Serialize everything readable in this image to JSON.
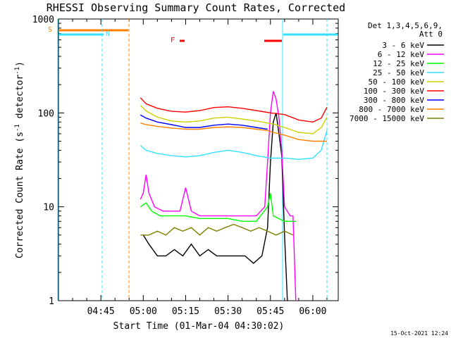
{
  "chart_data": {
    "type": "line",
    "title": "RHESSI Observing Summary Count Rates, Corrected",
    "xlabel": "Start Time (01-Mar-04 04:30:02)",
    "ylabel": "Corrected Count Rate (s",
    "ylabel_sup": "-1",
    "ylabel_tail": " detector",
    "ylabel_tail_sup": "-1",
    "ylabel_close": ")",
    "footer": "15-Oct-2021 12:24",
    "yscale": "log",
    "xlim": [
      "04:30",
      "06:09"
    ],
    "ylim": [
      1,
      1000
    ],
    "x_ticks": [
      "04:45",
      "05:00",
      "05:15",
      "05:30",
      "05:45",
      "06:00"
    ],
    "y_ticks": [
      "1",
      "10",
      "100",
      "1000"
    ],
    "legend_header": [
      "Det 1,3,4,5,6,9,",
      "Att 0"
    ],
    "legend_position": "top-right outside",
    "flags": [
      {
        "label": "S",
        "color": "#ff8000"
      },
      {
        "label": "N",
        "color": "#33e0ff"
      },
      {
        "label": "F",
        "color": "#ff0000"
      }
    ],
    "series": [
      {
        "name": "3 - 6 keV",
        "color": "#000000",
        "points": [
          [
            "05:00",
            5
          ],
          [
            "05:02",
            4
          ],
          [
            "05:05",
            3
          ],
          [
            "05:08",
            3
          ],
          [
            "05:11",
            3.5
          ],
          [
            "05:14",
            3
          ],
          [
            "05:17",
            4
          ],
          [
            "05:20",
            3
          ],
          [
            "05:23",
            3.5
          ],
          [
            "05:26",
            3
          ],
          [
            "05:30",
            3
          ],
          [
            "05:33",
            3
          ],
          [
            "05:36",
            3
          ],
          [
            "05:39",
            2.5
          ],
          [
            "05:42",
            3
          ],
          [
            "05:44",
            6
          ],
          [
            "05:45",
            30
          ],
          [
            "05:46",
            80
          ],
          [
            "05:47",
            100
          ],
          [
            "05:48",
            60
          ],
          [
            "05:49",
            35
          ],
          [
            "05:50",
            5
          ],
          [
            "05:51",
            1
          ]
        ]
      },
      {
        "name": "6 - 12 keV",
        "color": "#ff00ff",
        "points": [
          [
            "04:59",
            12
          ],
          [
            "05:00",
            14
          ],
          [
            "05:01",
            22
          ],
          [
            "05:02",
            14
          ],
          [
            "05:04",
            10
          ],
          [
            "05:07",
            9
          ],
          [
            "05:10",
            9
          ],
          [
            "05:13",
            9
          ],
          [
            "05:15",
            16
          ],
          [
            "05:17",
            9
          ],
          [
            "05:20",
            8
          ],
          [
            "05:25",
            8
          ],
          [
            "05:30",
            8
          ],
          [
            "05:35",
            8
          ],
          [
            "05:40",
            8
          ],
          [
            "05:43",
            10
          ],
          [
            "05:44",
            30
          ],
          [
            "05:45",
            100
          ],
          [
            "05:46",
            170
          ],
          [
            "05:47",
            140
          ],
          [
            "05:48",
            90
          ],
          [
            "05:49",
            40
          ],
          [
            "05:50",
            10
          ],
          [
            "05:52",
            8
          ],
          [
            "05:53",
            8
          ],
          [
            "05:54",
            1
          ]
        ]
      },
      {
        "name": "12 - 25 keV",
        "color": "#00ff00",
        "points": [
          [
            "04:59",
            10
          ],
          [
            "05:01",
            11
          ],
          [
            "05:03",
            9
          ],
          [
            "05:06",
            8
          ],
          [
            "05:10",
            8
          ],
          [
            "05:15",
            8
          ],
          [
            "05:20",
            7.5
          ],
          [
            "05:25",
            7.5
          ],
          [
            "05:30",
            7.5
          ],
          [
            "05:35",
            7
          ],
          [
            "05:40",
            7
          ],
          [
            "05:44",
            10
          ],
          [
            "05:45",
            14
          ],
          [
            "05:46",
            8
          ],
          [
            "05:50",
            7
          ],
          [
            "05:54",
            7
          ]
        ]
      },
      {
        "name": "25 - 50 keV",
        "color": "#33e0ff",
        "points": [
          [
            "04:59",
            45
          ],
          [
            "05:01",
            40
          ],
          [
            "05:05",
            37
          ],
          [
            "05:10",
            35
          ],
          [
            "05:15",
            34
          ],
          [
            "05:20",
            35
          ],
          [
            "05:25",
            38
          ],
          [
            "05:30",
            40
          ],
          [
            "05:35",
            38
          ],
          [
            "05:40",
            35
          ],
          [
            "05:45",
            33
          ],
          [
            "05:50",
            33
          ],
          [
            "05:55",
            32
          ],
          [
            "06:00",
            33
          ],
          [
            "06:03",
            40
          ],
          [
            "06:05",
            65
          ]
        ]
      },
      {
        "name": "50 - 100 keV",
        "color": "#d0d000",
        "points": [
          [
            "04:59",
            120
          ],
          [
            "05:01",
            105
          ],
          [
            "05:05",
            90
          ],
          [
            "05:10",
            82
          ],
          [
            "05:15",
            80
          ],
          [
            "05:20",
            82
          ],
          [
            "05:25",
            88
          ],
          [
            "05:30",
            90
          ],
          [
            "05:35",
            86
          ],
          [
            "05:40",
            82
          ],
          [
            "05:44",
            78
          ],
          [
            "05:46",
            76
          ],
          [
            "05:50",
            70
          ],
          [
            "05:55",
            62
          ],
          [
            "06:00",
            60
          ],
          [
            "06:03",
            70
          ],
          [
            "06:05",
            90
          ]
        ]
      },
      {
        "name": "100 - 300 keV",
        "color": "#ff0000",
        "points": [
          [
            "04:59",
            145
          ],
          [
            "05:01",
            125
          ],
          [
            "05:05",
            112
          ],
          [
            "05:10",
            104
          ],
          [
            "05:15",
            102
          ],
          [
            "05:20",
            106
          ],
          [
            "05:25",
            114
          ],
          [
            "05:30",
            116
          ],
          [
            "05:35",
            112
          ],
          [
            "05:40",
            106
          ],
          [
            "05:45",
            100
          ],
          [
            "05:50",
            96
          ],
          [
            "05:55",
            84
          ],
          [
            "06:00",
            80
          ],
          [
            "06:03",
            88
          ],
          [
            "06:05",
            115
          ]
        ]
      },
      {
        "name": "300 - 800 keV",
        "color": "#0000ff",
        "points": [
          [
            "04:59",
            95
          ],
          [
            "05:01",
            88
          ],
          [
            "05:05",
            80
          ],
          [
            "05:10",
            75
          ],
          [
            "05:15",
            70
          ],
          [
            "05:20",
            70
          ],
          [
            "05:25",
            74
          ],
          [
            "05:30",
            76
          ],
          [
            "05:35",
            74
          ],
          [
            "05:40",
            70
          ],
          [
            "05:44",
            67
          ]
        ]
      },
      {
        "name": "800 - 7000 keV",
        "color": "#ff8000",
        "points": [
          [
            "04:59",
            78
          ],
          [
            "05:01",
            75
          ],
          [
            "05:05",
            72
          ],
          [
            "05:10",
            69
          ],
          [
            "05:15",
            67
          ],
          [
            "05:20",
            67
          ],
          [
            "05:25",
            70
          ],
          [
            "05:30",
            71
          ],
          [
            "05:35",
            70
          ],
          [
            "05:40",
            67
          ],
          [
            "05:44",
            65
          ],
          [
            "05:46",
            62
          ],
          [
            "05:50",
            58
          ],
          [
            "05:55",
            52
          ],
          [
            "06:00",
            50
          ],
          [
            "06:05",
            50
          ]
        ]
      },
      {
        "name": "7000 - 15000 keV",
        "color": "#808000",
        "points": [
          [
            "04:59",
            5
          ],
          [
            "05:02",
            5
          ],
          [
            "05:05",
            5.5
          ],
          [
            "05:08",
            5
          ],
          [
            "05:11",
            6
          ],
          [
            "05:14",
            5.5
          ],
          [
            "05:17",
            6
          ],
          [
            "05:20",
            5
          ],
          [
            "05:23",
            6
          ],
          [
            "05:26",
            5.5
          ],
          [
            "05:29",
            6
          ],
          [
            "05:32",
            6.5
          ],
          [
            "05:35",
            6
          ],
          [
            "05:38",
            5.5
          ],
          [
            "05:41",
            6
          ],
          [
            "05:44",
            5.5
          ],
          [
            "05:47",
            5
          ],
          [
            "05:50",
            5.5
          ],
          [
            "05:53",
            5
          ]
        ]
      }
    ]
  }
}
